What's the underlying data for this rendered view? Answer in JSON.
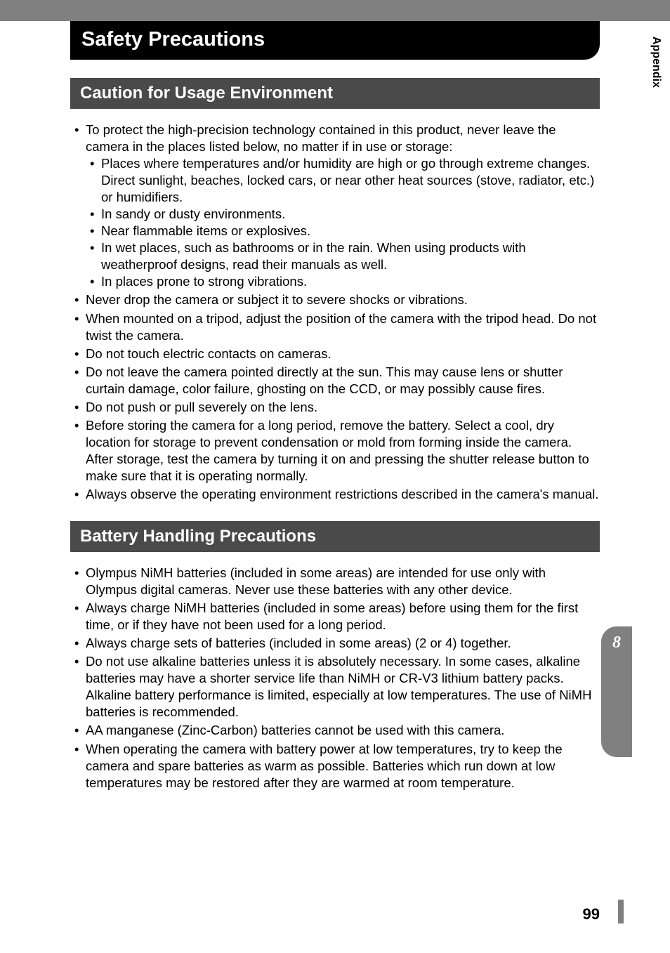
{
  "page_title": "Safety Precautions",
  "sections": [
    {
      "header": "Caution for Usage Environment",
      "items": [
        {
          "text": "To protect the high-precision technology contained in this product, never leave the camera in the places listed below, no matter if in use or storage:",
          "sub": [
            "Places where temperatures and/or humidity are high or go through extreme changes. Direct sunlight, beaches, locked cars, or near other heat sources (stove, radiator, etc.) or humidifiers.",
            "In sandy or dusty environments.",
            "Near flammable items or explosives.",
            "In wet places, such as bathrooms or in the rain. When using products with weatherproof designs, read their manuals as well.",
            "In places prone to strong vibrations."
          ]
        },
        {
          "text": "Never drop the camera or subject it to severe shocks or vibrations."
        },
        {
          "text": "When mounted on a tripod, adjust the position of the camera with the tripod head. Do not twist the camera."
        },
        {
          "text": "Do not touch electric contacts on cameras."
        },
        {
          "text": "Do not leave the camera pointed directly at the sun. This may cause lens or shutter curtain damage, color failure, ghosting on the CCD, or may possibly cause fires."
        },
        {
          "text": "Do not push or pull severely on the lens."
        },
        {
          "text": "Before storing the camera for a long period, remove the battery. Select a cool, dry location for storage to prevent condensation or mold from forming inside the camera. After storage, test the camera by turning it on and pressing the shutter release button to make sure that it is operating normally."
        },
        {
          "text": "Always observe the operating environment restrictions described in the camera's manual."
        }
      ]
    },
    {
      "header": "Battery Handling Precautions",
      "items": [
        {
          "text": "Olympus NiMH batteries (included in some areas) are intended for use only with Olympus digital cameras. Never use these batteries with any other device."
        },
        {
          "text": "Always charge NiMH batteries (included in some areas) before using them for the first time, or if they have not been used for a long period."
        },
        {
          "text": "Always charge sets of batteries (included in some areas) (2 or 4) together."
        },
        {
          "text": "Do not use alkaline batteries unless it is absolutely necessary. In some cases, alkaline batteries may have a shorter service life than NiMH or CR-V3 lithium battery packs. Alkaline battery performance is limited, especially at low temperatures. The use of NiMH batteries is recommended."
        },
        {
          "text": "AA manganese (Zinc-Carbon) batteries cannot be used with this camera."
        },
        {
          "text": "When operating the camera with battery power at low temperatures, try to keep the camera and spare batteries as warm as possible. Batteries which run down at low temperatures may be restored after they are warmed at room temperature."
        }
      ]
    }
  ],
  "side_tab": {
    "number": "8",
    "label": "Appendix"
  },
  "page_number": "99",
  "colors": {
    "top_bar": "#808080",
    "title_bg": "#000000",
    "section_bg": "#4a4a4a",
    "tab_bg": "#808080",
    "text": "#000000",
    "white": "#ffffff"
  },
  "typography": {
    "title_size": 29,
    "section_size": 24,
    "body_size": 18.5,
    "line_height": 1.3
  }
}
